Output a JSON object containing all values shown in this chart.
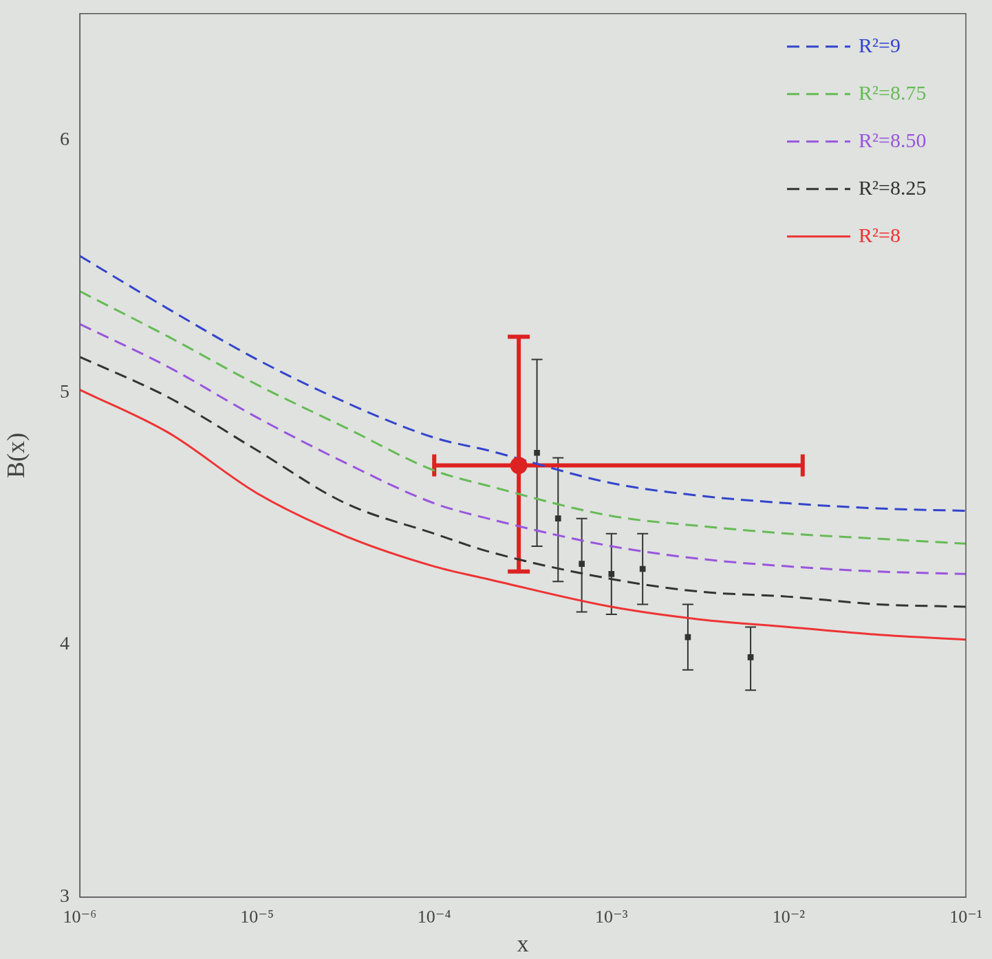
{
  "chart_data": {
    "type": "line",
    "xlabel": "x",
    "ylabel": "B(x)",
    "log": "x",
    "xlim": [
      1e-06,
      0.1
    ],
    "ylim": [
      3,
      6.5
    ],
    "xticks": [
      {
        "value": 1e-06,
        "label": "10⁻⁶"
      },
      {
        "value": 1e-05,
        "label": "10⁻⁵"
      },
      {
        "value": 0.0001,
        "label": "10⁻⁴"
      },
      {
        "value": 0.001,
        "label": "10⁻³"
      },
      {
        "value": 0.01,
        "label": "10⁻²"
      },
      {
        "value": 0.1,
        "label": "10⁻¹"
      }
    ],
    "yticks": [
      3,
      4,
      5,
      6
    ],
    "grid": false,
    "legend": "top right",
    "x": [
      1e-06,
      3.16e-06,
      1e-05,
      3.16e-05,
      0.0001,
      0.0002,
      0.001,
      0.00316,
      0.01,
      0.0316,
      0.1
    ],
    "series": [
      {
        "name": "R²=9",
        "color": "#3344cc",
        "line_style": "dashed",
        "marker": "none",
        "values": [
          5.54,
          5.33,
          5.13,
          4.96,
          4.82,
          4.77,
          4.64,
          4.59,
          4.56,
          4.54,
          4.53
        ]
      },
      {
        "name": "R²=8.75",
        "color": "#66bb55",
        "line_style": "dashed",
        "marker": "none",
        "values": [
          5.4,
          5.22,
          5.03,
          4.86,
          4.69,
          4.63,
          4.51,
          4.47,
          4.44,
          4.42,
          4.4
        ]
      },
      {
        "name": "R²=8.50",
        "color": "#9955dd",
        "line_style": "dashed",
        "marker": "none",
        "values": [
          5.27,
          5.1,
          4.9,
          4.72,
          4.56,
          4.5,
          4.39,
          4.34,
          4.31,
          4.29,
          4.28
        ]
      },
      {
        "name": "R²=8.25",
        "color": "#333333",
        "line_style": "dashed",
        "marker": "none",
        "values": [
          5.14,
          4.98,
          4.77,
          4.56,
          4.44,
          4.37,
          4.26,
          4.21,
          4.19,
          4.16,
          4.15
        ]
      },
      {
        "name": "R²=8",
        "color": "#ee3333",
        "line_style": "solid",
        "marker": "none",
        "values": [
          5.01,
          4.84,
          4.6,
          4.43,
          4.31,
          4.26,
          4.15,
          4.1,
          4.07,
          4.04,
          4.02
        ]
      },
      {
        "type": "scatter",
        "color": "#333333",
        "marker": "square",
        "x": [
          0.00038,
          0.0005,
          0.00068,
          0.001,
          0.0015,
          0.0027,
          0.0061
        ],
        "values": [
          4.76,
          4.5,
          4.32,
          4.28,
          4.3,
          4.03,
          3.95
        ],
        "errors": [
          [
            4.39,
            5.13
          ],
          [
            4.25,
            4.74
          ],
          [
            4.13,
            4.5
          ],
          [
            4.12,
            4.44
          ],
          [
            4.16,
            4.44
          ],
          [
            3.9,
            4.16
          ],
          [
            3.82,
            4.07
          ]
        ]
      },
      {
        "type": "scatter",
        "color": "#dd2222",
        "marker": "circle",
        "x": [
          0.0003
        ],
        "values": [
          4.71
        ],
        "errors": [
          [
            4.29,
            5.22
          ]
        ],
        "xerrors": [
          [
            0.0001,
            0.012
          ]
        ]
      }
    ]
  }
}
